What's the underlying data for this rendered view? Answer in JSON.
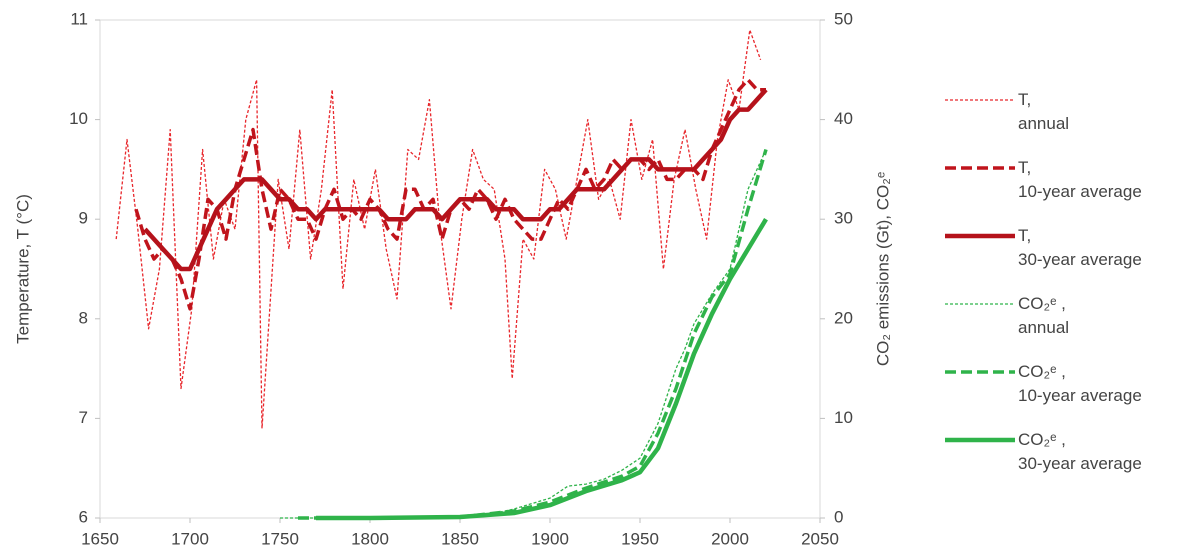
{
  "chart_data": {
    "type": "line",
    "y_label": "Temperature, T (°C)",
    "y2_label": "CO₂ emissions (Gt), CO₂ᵉ",
    "xlim": [
      1650,
      2050
    ],
    "xticks": [
      1650,
      1700,
      1750,
      1800,
      1850,
      1900,
      1950,
      2000,
      2050
    ],
    "ylim": [
      6,
      11
    ],
    "yticks": [
      6,
      7,
      8,
      9,
      10,
      11
    ],
    "y2lim": [
      0,
      50
    ],
    "y2ticks": [
      0,
      10,
      20,
      30,
      40,
      50
    ],
    "series": [
      {
        "name": "T,\nannual",
        "color": "#e8262b",
        "style": "dotted",
        "x": [
          1659,
          1665,
          1671,
          1677,
          1683,
          1689,
          1695,
          1701,
          1707,
          1713,
          1719,
          1725,
          1731,
          1737,
          1740,
          1749,
          1755,
          1761,
          1767,
          1773,
          1779,
          1785,
          1791,
          1797,
          1803,
          1809,
          1815,
          1821,
          1827,
          1833,
          1839,
          1845,
          1851,
          1857,
          1863,
          1869,
          1875,
          1879,
          1885,
          1891,
          1897,
          1903,
          1909,
          1915,
          1921,
          1927,
          1933,
          1939,
          1945,
          1951,
          1957,
          1963,
          1969,
          1975,
          1981,
          1987,
          1993,
          1999,
          2005,
          2011,
          2017
        ],
        "values": [
          8.8,
          9.8,
          8.9,
          7.9,
          8.5,
          9.9,
          7.3,
          8.1,
          9.7,
          8.6,
          9.2,
          8.9,
          10.0,
          10.4,
          6.9,
          9.4,
          8.7,
          9.9,
          8.6,
          9.3,
          10.3,
          8.3,
          9.4,
          8.9,
          9.5,
          8.7,
          8.2,
          9.7,
          9.6,
          10.2,
          8.9,
          8.1,
          9.0,
          9.7,
          9.4,
          9.3,
          8.6,
          7.4,
          8.8,
          8.6,
          9.5,
          9.3,
          8.8,
          9.4,
          10.0,
          9.2,
          9.4,
          9.0,
          10.0,
          9.4,
          9.8,
          8.5,
          9.4,
          9.9,
          9.3,
          8.8,
          9.8,
          10.4,
          10.1,
          10.9,
          10.6
        ]
      },
      {
        "name": "T,\n10-year average",
        "color": "#c0141c",
        "style": "dashed",
        "x": [
          1670,
          1675,
          1680,
          1685,
          1690,
          1695,
          1700,
          1705,
          1710,
          1715,
          1720,
          1725,
          1730,
          1735,
          1740,
          1745,
          1750,
          1755,
          1760,
          1765,
          1770,
          1775,
          1780,
          1785,
          1790,
          1795,
          1800,
          1805,
          1810,
          1815,
          1820,
          1825,
          1830,
          1835,
          1840,
          1845,
          1850,
          1855,
          1860,
          1865,
          1870,
          1875,
          1880,
          1885,
          1890,
          1895,
          1900,
          1905,
          1910,
          1915,
          1920,
          1925,
          1930,
          1935,
          1940,
          1945,
          1950,
          1955,
          1960,
          1965,
          1970,
          1975,
          1980,
          1985,
          1990,
          1995,
          2000,
          2005,
          2010,
          2015,
          2020
        ],
        "values": [
          9.1,
          8.8,
          8.6,
          8.7,
          8.6,
          8.4,
          8.1,
          8.6,
          9.2,
          9.1,
          8.8,
          9.3,
          9.6,
          9.9,
          9.3,
          8.9,
          9.3,
          9.2,
          9.0,
          9.0,
          8.8,
          9.1,
          9.3,
          9.0,
          9.1,
          9.0,
          9.2,
          9.1,
          8.9,
          8.8,
          9.3,
          9.3,
          9.1,
          9.2,
          8.8,
          9.1,
          9.2,
          9.1,
          9.3,
          9.2,
          9.0,
          9.2,
          9.0,
          8.9,
          8.8,
          8.8,
          9.0,
          9.2,
          9.1,
          9.3,
          9.5,
          9.3,
          9.4,
          9.6,
          9.5,
          9.6,
          9.6,
          9.5,
          9.6,
          9.4,
          9.4,
          9.5,
          9.5,
          9.4,
          9.7,
          9.9,
          10.1,
          10.3,
          10.4,
          10.3,
          10.3
        ]
      },
      {
        "name": "T,\n30-year average",
        "color": "#b5121b",
        "style": "solid",
        "x": [
          1675,
          1680,
          1685,
          1690,
          1695,
          1700,
          1705,
          1710,
          1715,
          1720,
          1725,
          1730,
          1735,
          1740,
          1745,
          1750,
          1755,
          1760,
          1765,
          1770,
          1775,
          1780,
          1785,
          1790,
          1795,
          1800,
          1805,
          1810,
          1815,
          1820,
          1825,
          1830,
          1835,
          1840,
          1845,
          1850,
          1855,
          1860,
          1865,
          1870,
          1875,
          1880,
          1885,
          1890,
          1895,
          1900,
          1905,
          1910,
          1915,
          1920,
          1925,
          1930,
          1935,
          1940,
          1945,
          1950,
          1955,
          1960,
          1965,
          1970,
          1975,
          1980,
          1985,
          1990,
          1995,
          2000,
          2005,
          2010,
          2015,
          2020
        ],
        "values": [
          8.9,
          8.8,
          8.7,
          8.6,
          8.5,
          8.5,
          8.7,
          8.9,
          9.1,
          9.2,
          9.3,
          9.4,
          9.4,
          9.4,
          9.3,
          9.2,
          9.2,
          9.1,
          9.1,
          9.0,
          9.1,
          9.1,
          9.1,
          9.1,
          9.1,
          9.1,
          9.1,
          9.0,
          9.0,
          9.0,
          9.1,
          9.1,
          9.1,
          9.0,
          9.1,
          9.2,
          9.2,
          9.2,
          9.2,
          9.1,
          9.1,
          9.1,
          9.0,
          9.0,
          9.0,
          9.1,
          9.1,
          9.2,
          9.3,
          9.3,
          9.3,
          9.3,
          9.4,
          9.5,
          9.6,
          9.6,
          9.6,
          9.5,
          9.5,
          9.5,
          9.5,
          9.5,
          9.6,
          9.7,
          9.8,
          10.0,
          10.1,
          10.1,
          10.2,
          10.3
        ]
      },
      {
        "name": "CO₂ᵉ ,\nannual",
        "color": "#2fb34a",
        "style": "dotted",
        "axis": "y2",
        "x": [
          1750,
          1800,
          1850,
          1870,
          1880,
          1900,
          1910,
          1920,
          1930,
          1940,
          1950,
          1960,
          1970,
          1975,
          1980,
          1990,
          2000,
          2010,
          2020
        ],
        "values": [
          0,
          0,
          0.2,
          0.5,
          0.9,
          2.0,
          3.2,
          3.4,
          3.9,
          4.8,
          6.0,
          9.5,
          15,
          17,
          19.5,
          22.5,
          25,
          33,
          37
        ]
      },
      {
        "name": "CO₂ᵉ ,\n10-year average",
        "color": "#2fb34a",
        "style": "dashed",
        "axis": "y2",
        "x": [
          1760,
          1800,
          1850,
          1880,
          1900,
          1920,
          1940,
          1950,
          1960,
          1970,
          1980,
          1990,
          2000,
          2010,
          2020
        ],
        "values": [
          0,
          0,
          0.1,
          0.7,
          1.6,
          3.0,
          4.2,
          5.2,
          8.5,
          13,
          18.5,
          22.2,
          24.5,
          31,
          37
        ]
      },
      {
        "name": "CO₂ᵉ ,\n30-year average",
        "color": "#2fb34a",
        "style": "solid",
        "axis": "y2",
        "x": [
          1770,
          1800,
          1850,
          1880,
          1900,
          1920,
          1940,
          1950,
          1960,
          1970,
          1980,
          1990,
          2000,
          2010,
          2020
        ],
        "values": [
          0,
          0,
          0.1,
          0.5,
          1.3,
          2.7,
          3.8,
          4.6,
          7.0,
          11.5,
          16.5,
          20.5,
          24,
          27,
          30
        ]
      }
    ]
  }
}
